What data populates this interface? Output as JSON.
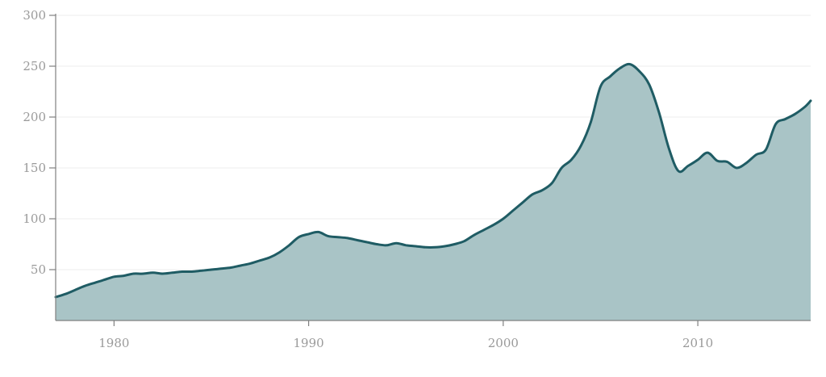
{
  "chart_data": {
    "type": "area",
    "title": "",
    "xlabel": "",
    "ylabel": "",
    "xlim": [
      1977,
      2015.8
    ],
    "ylim": [
      0,
      300
    ],
    "grid": true,
    "line_color": "#1f5c64",
    "fill_color": "#a9c4c6",
    "x_ticks": [
      1980,
      1990,
      2000,
      2010
    ],
    "y_ticks": [
      50,
      100,
      150,
      200,
      250,
      300
    ],
    "x_tick_labels": [
      "1980",
      "1990",
      "2000",
      "2010"
    ],
    "y_tick_labels": [
      "50",
      "100",
      "150",
      "200",
      "250",
      "300"
    ],
    "series": [
      {
        "x": [
          1977.0,
          1977.5,
          1978.0,
          1978.5,
          1979.0,
          1979.5,
          1980.0,
          1980.5,
          1981.0,
          1981.5,
          1982.0,
          1982.5,
          1983.0,
          1983.5,
          1984.0,
          1984.5,
          1985.0,
          1985.5,
          1986.0,
          1986.5,
          1987.0,
          1987.5,
          1988.0,
          1988.5,
          1989.0,
          1989.5,
          1990.0,
          1990.5,
          1991.0,
          1991.5,
          1992.0,
          1992.5,
          1993.0,
          1993.5,
          1994.0,
          1994.5,
          1995.0,
          1995.5,
          1996.0,
          1996.5,
          1997.0,
          1997.5,
          1998.0,
          1998.5,
          1999.0,
          1999.5,
          2000.0,
          2000.5,
          2001.0,
          2001.5,
          2002.0,
          2002.5,
          2003.0,
          2003.5,
          2004.0,
          2004.5,
          2005.0,
          2005.5,
          2006.0,
          2006.5,
          2007.0,
          2007.5,
          2008.0,
          2008.5,
          2009.0,
          2009.5,
          2010.0,
          2010.5,
          2011.0,
          2011.5,
          2012.0,
          2012.5,
          2013.0,
          2013.5,
          2014.0,
          2014.5,
          2015.0,
          2015.5,
          2015.8
        ],
        "values": [
          23,
          26,
          30,
          34,
          37,
          40,
          43,
          44,
          46,
          46,
          47,
          46,
          47,
          48,
          48,
          49,
          50,
          51,
          52,
          54,
          56,
          59,
          62,
          67,
          74,
          82,
          85,
          87,
          83,
          82,
          81,
          79,
          77,
          75,
          74,
          76,
          74,
          73,
          72,
          72,
          73,
          75,
          78,
          84,
          89,
          94,
          100,
          108,
          116,
          124,
          128,
          135,
          150,
          158,
          172,
          195,
          230,
          240,
          248,
          252,
          245,
          232,
          205,
          170,
          147,
          152,
          158,
          165,
          157,
          156,
          150,
          155,
          163,
          168,
          193,
          198,
          203,
          210,
          216
        ]
      }
    ]
  }
}
